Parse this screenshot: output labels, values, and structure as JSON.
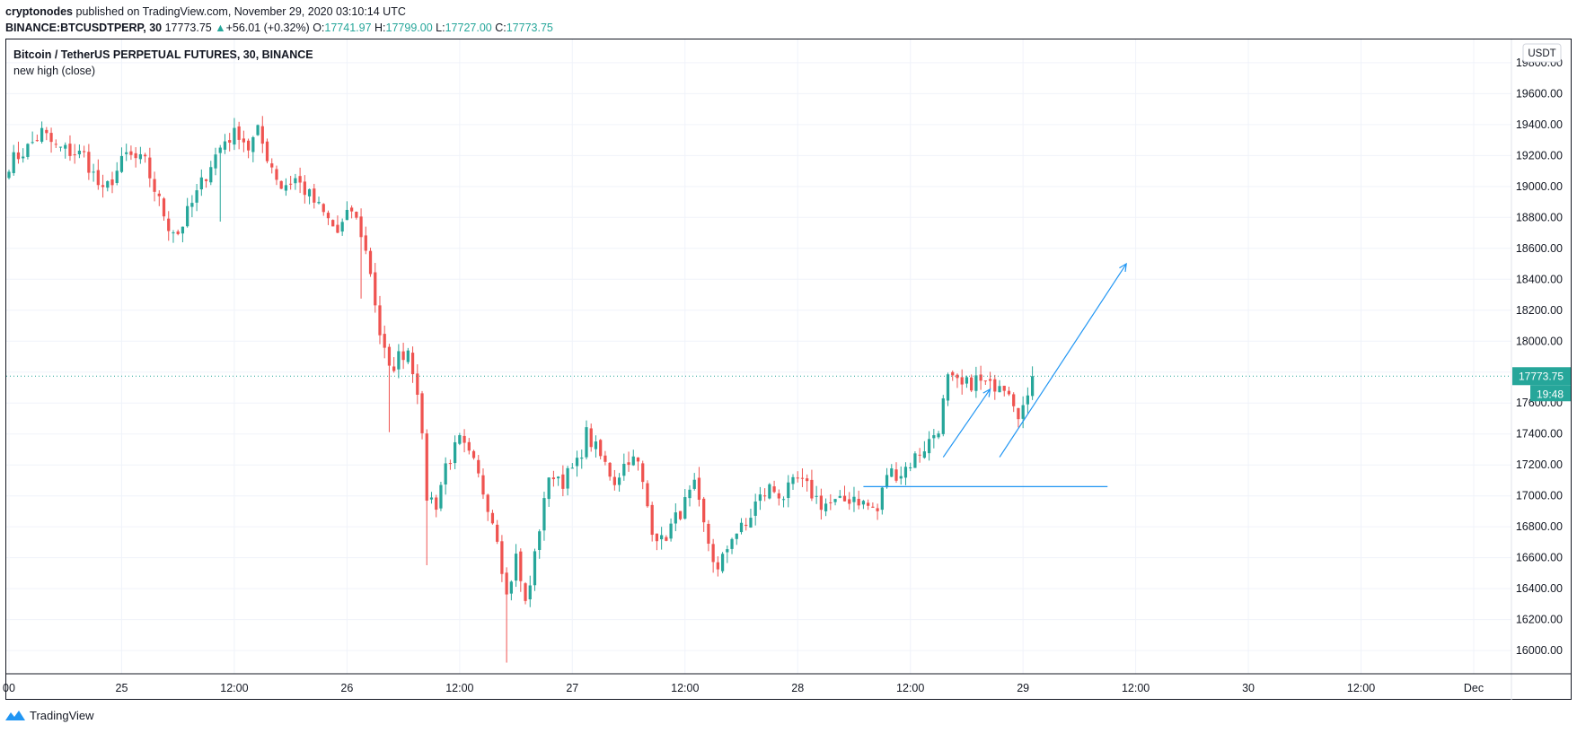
{
  "header": {
    "author": "cryptonodes",
    "published": "published on TradingView.com, November 29, 2020 03:10:14 UTC",
    "symbol": "BINANCE:BTCUSDTPERP, 30",
    "last": "17773.75",
    "change_arrow": "▲",
    "change": "+56.01 (+0.32%)",
    "o_label": "O:",
    "o": "17741.97",
    "h_label": "H:",
    "h": "17799.00",
    "l_label": "L:",
    "l": "17727.00",
    "c_label": "C:",
    "c": "17773.75"
  },
  "legend": {
    "title": "Bitcoin / TetherUS PERPETUAL FUTURES, 30, BINANCE",
    "indicator": "new high (close)"
  },
  "footer": {
    "brand": "TradingView",
    "icon": "tradingview-logo-icon"
  },
  "colors": {
    "up": "#26a69a",
    "down": "#ef5350",
    "drawing": "#2196f3",
    "price_line": "#26a69a"
  },
  "chart_data": {
    "type": "candlestick",
    "currency": "USDT",
    "last_price": 17773.75,
    "countdown": "19:48",
    "ylim": [
      15850,
      19950
    ],
    "y_ticks": [
      "19800.00",
      "19600.00",
      "19400.00",
      "19200.00",
      "19000.00",
      "18800.00",
      "18600.00",
      "18400.00",
      "18200.00",
      "18000.00",
      "17800.00",
      "17600.00",
      "17400.00",
      "17200.00",
      "17000.00",
      "16800.00",
      "16600.00",
      "16400.00",
      "16200.00",
      "16000.00"
    ],
    "x_ticks": [
      {
        "t": 0,
        "label": "00"
      },
      {
        "t": 24,
        "label": "25"
      },
      {
        "t": 48,
        "label": "12:00"
      },
      {
        "t": 72,
        "label": "26"
      },
      {
        "t": 96,
        "label": "12:00"
      },
      {
        "t": 120,
        "label": "27"
      },
      {
        "t": 144,
        "label": "12:00"
      },
      {
        "t": 168,
        "label": "28"
      },
      {
        "t": 192,
        "label": "12:00"
      },
      {
        "t": 216,
        "label": "29"
      },
      {
        "t": 240,
        "label": "12:00"
      },
      {
        "t": 264,
        "label": "30"
      },
      {
        "t": 288,
        "label": "12:00"
      },
      {
        "t": 312,
        "label": "Dec"
      }
    ],
    "grid": true,
    "keypoints": [
      {
        "t": 0,
        "p": 19150
      },
      {
        "t": 4,
        "p": 19250
      },
      {
        "t": 7,
        "p": 19350
      },
      {
        "t": 10,
        "p": 19250
      },
      {
        "t": 16,
        "p": 19200
      },
      {
        "t": 20,
        "p": 18950
      },
      {
        "t": 25,
        "p": 19200
      },
      {
        "t": 29,
        "p": 19150
      },
      {
        "t": 32,
        "p": 18900
      },
      {
        "t": 34,
        "p": 18750
      },
      {
        "t": 36,
        "p": 18700
      },
      {
        "t": 40,
        "p": 18950
      },
      {
        "t": 43,
        "p": 19150
      },
      {
        "t": 46,
        "p": 19300
      },
      {
        "t": 49,
        "p": 19350
      },
      {
        "t": 51,
        "p": 19250
      },
      {
        "t": 53,
        "p": 19350
      },
      {
        "t": 55,
        "p": 19200
      },
      {
        "t": 58,
        "p": 19000
      },
      {
        "t": 61,
        "p": 19050
      },
      {
        "t": 65,
        "p": 18900
      },
      {
        "t": 70,
        "p": 18700
      },
      {
        "t": 73,
        "p": 18850
      },
      {
        "t": 75,
        "p": 18700
      },
      {
        "t": 77,
        "p": 18450
      },
      {
        "t": 79,
        "p": 18050
      },
      {
        "t": 81,
        "p": 17800
      },
      {
        "t": 83,
        "p": 17900
      },
      {
        "t": 85,
        "p": 17950
      },
      {
        "t": 87,
        "p": 17700
      },
      {
        "t": 89,
        "p": 17000
      },
      {
        "t": 91,
        "p": 16950
      },
      {
        "t": 93,
        "p": 17200
      },
      {
        "t": 96,
        "p": 17350
      },
      {
        "t": 99,
        "p": 17200
      },
      {
        "t": 102,
        "p": 16950
      },
      {
        "t": 104,
        "p": 16750
      },
      {
        "t": 106,
        "p": 16350
      },
      {
        "t": 108,
        "p": 16600
      },
      {
        "t": 110,
        "p": 16300
      },
      {
        "t": 112,
        "p": 16600
      },
      {
        "t": 114,
        "p": 17000
      },
      {
        "t": 116,
        "p": 17150
      },
      {
        "t": 118,
        "p": 17100
      },
      {
        "t": 121,
        "p": 17200
      },
      {
        "t": 123,
        "p": 17400
      },
      {
        "t": 126,
        "p": 17250
      },
      {
        "t": 129,
        "p": 17100
      },
      {
        "t": 132,
        "p": 17250
      },
      {
        "t": 134,
        "p": 17200
      },
      {
        "t": 137,
        "p": 16800
      },
      {
        "t": 139,
        "p": 16700
      },
      {
        "t": 142,
        "p": 16850
      },
      {
        "t": 144,
        "p": 16950
      },
      {
        "t": 146,
        "p": 17050
      },
      {
        "t": 148,
        "p": 16800
      },
      {
        "t": 151,
        "p": 16500
      },
      {
        "t": 154,
        "p": 16750
      },
      {
        "t": 157,
        "p": 16800
      },
      {
        "t": 159,
        "p": 16950
      },
      {
        "t": 162,
        "p": 17050
      },
      {
        "t": 165,
        "p": 17000
      },
      {
        "t": 168,
        "p": 17100
      },
      {
        "t": 170,
        "p": 17050
      },
      {
        "t": 173,
        "p": 16950
      },
      {
        "t": 177,
        "p": 16950
      },
      {
        "t": 180,
        "p": 17000
      },
      {
        "t": 182,
        "p": 16950
      },
      {
        "t": 185,
        "p": 16900
      },
      {
        "t": 187,
        "p": 17150
      },
      {
        "t": 190,
        "p": 17150
      },
      {
        "t": 193,
        "p": 17250
      },
      {
        "t": 196,
        "p": 17350
      },
      {
        "t": 198,
        "p": 17450
      },
      {
        "t": 200,
        "p": 17750
      },
      {
        "t": 203,
        "p": 17700
      },
      {
        "t": 206,
        "p": 17750
      },
      {
        "t": 209,
        "p": 17700
      },
      {
        "t": 211,
        "p": 17750
      },
      {
        "t": 213,
        "p": 17700
      },
      {
        "t": 215,
        "p": 17550
      },
      {
        "t": 217,
        "p": 17600
      },
      {
        "t": 218,
        "p": 17774
      }
    ],
    "drawings": [
      {
        "type": "horizontal-line",
        "price": 17060,
        "t_start": 182,
        "t_end": 234
      },
      {
        "type": "arrow",
        "from": {
          "t": 199,
          "p": 17250
        },
        "to": {
          "t": 209,
          "p": 17690
        }
      },
      {
        "type": "arrow",
        "from": {
          "t": 211,
          "p": 17250
        },
        "to": {
          "t": 238,
          "p": 18500
        }
      }
    ]
  }
}
